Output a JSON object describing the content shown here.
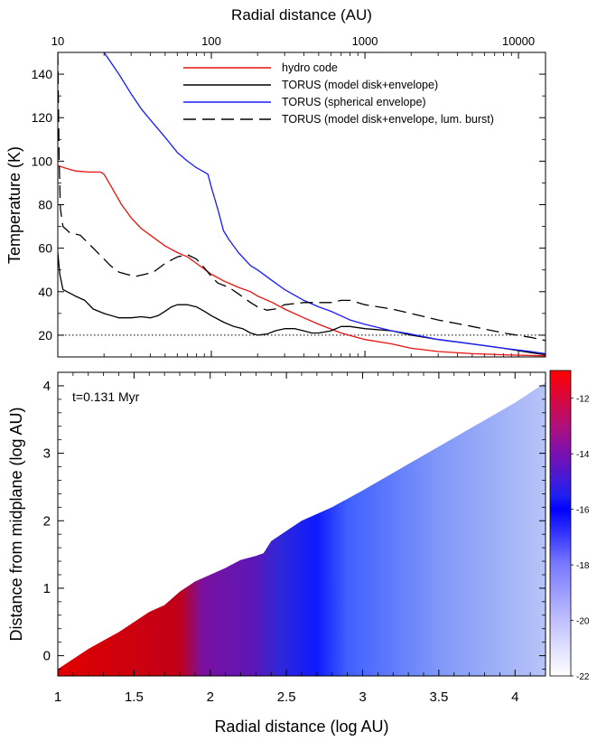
{
  "chart_data": [
    {
      "type": "line",
      "title": "",
      "xlabel": "Radial distance (AU)",
      "ylabel": "Temperature (K)",
      "xscale": "log",
      "xlim": [
        10,
        15000
      ],
      "ylim": [
        10,
        150
      ],
      "xticks": [
        10,
        100,
        1000,
        10000
      ],
      "xtick_labels": [
        "10",
        "100",
        "1000",
        "10000"
      ],
      "yticks": [
        20,
        40,
        60,
        80,
        100,
        120,
        140
      ],
      "ytick_labels": [
        "20",
        "40",
        "60",
        "80",
        "100",
        "120",
        "140"
      ],
      "legend_position": "top-right",
      "reference_line": {
        "y": 20,
        "style": "dotted"
      },
      "series": [
        {
          "name": "hydro code",
          "color": "#e8130f",
          "dash": "solid",
          "points": [
            [
              10,
              98
            ],
            [
              11,
              97
            ],
            [
              13,
              95.5
            ],
            [
              16,
              95
            ],
            [
              19,
              95
            ],
            [
              20,
              94
            ],
            [
              22,
              89
            ],
            [
              26,
              80
            ],
            [
              30,
              74
            ],
            [
              35,
              69
            ],
            [
              40,
              66
            ],
            [
              50,
              61
            ],
            [
              60,
              58
            ],
            [
              70,
              56
            ],
            [
              80,
              53
            ],
            [
              100,
              48
            ],
            [
              120,
              45
            ],
            [
              150,
              42
            ],
            [
              180,
              40
            ],
            [
              200,
              38
            ],
            [
              250,
              35
            ],
            [
              300,
              32
            ],
            [
              400,
              28
            ],
            [
              500,
              25
            ],
            [
              700,
              21
            ],
            [
              1000,
              18
            ],
            [
              1500,
              16
            ],
            [
              2000,
              14
            ],
            [
              3000,
              12.5
            ],
            [
              5000,
              11.5
            ],
            [
              8000,
              11
            ],
            [
              15000,
              10.5
            ]
          ]
        },
        {
          "name": "TORUS (model disk+envelope)",
          "color": "#000000",
          "dash": "solid",
          "points": [
            [
              10,
              58
            ],
            [
              10.3,
              48
            ],
            [
              10.8,
              41
            ],
            [
              11.5,
              40
            ],
            [
              13,
              38
            ],
            [
              15,
              36
            ],
            [
              17,
              32
            ],
            [
              20,
              30
            ],
            [
              25,
              28
            ],
            [
              30,
              28
            ],
            [
              35,
              28.5
            ],
            [
              40,
              28
            ],
            [
              45,
              29
            ],
            [
              50,
              31
            ],
            [
              55,
              33
            ],
            [
              60,
              34
            ],
            [
              70,
              34
            ],
            [
              80,
              33
            ],
            [
              90,
              31
            ],
            [
              100,
              29
            ],
            [
              120,
              26
            ],
            [
              140,
              24
            ],
            [
              160,
              23
            ],
            [
              180,
              21
            ],
            [
              200,
              20
            ],
            [
              230,
              20.5
            ],
            [
              260,
              22
            ],
            [
              300,
              23
            ],
            [
              350,
              23
            ],
            [
              400,
              22
            ],
            [
              450,
              21
            ],
            [
              500,
              21
            ],
            [
              600,
              22
            ],
            [
              700,
              24
            ],
            [
              800,
              24
            ],
            [
              1000,
              23
            ],
            [
              1500,
              22
            ],
            [
              2000,
              20
            ],
            [
              3000,
              18
            ],
            [
              5000,
              16
            ],
            [
              8000,
              14
            ],
            [
              12000,
              12
            ],
            [
              15000,
              11
            ]
          ]
        },
        {
          "name": "TORUS (spherical envelope)",
          "color": "#1a1aff",
          "dash": "solid",
          "points": [
            [
              20,
              150
            ],
            [
              25,
              140
            ],
            [
              30,
              131
            ],
            [
              35,
              124
            ],
            [
              40,
              119
            ],
            [
              50,
              111
            ],
            [
              60,
              104
            ],
            [
              70,
              100
            ],
            [
              80,
              97
            ],
            [
              90,
              95
            ],
            [
              95,
              94
            ],
            [
              100,
              88
            ],
            [
              110,
              78
            ],
            [
              120,
              68
            ],
            [
              130,
              64
            ],
            [
              150,
              58
            ],
            [
              180,
              52
            ],
            [
              200,
              50
            ],
            [
              250,
              45
            ],
            [
              300,
              41
            ],
            [
              400,
              36
            ],
            [
              500,
              33
            ],
            [
              600,
              31
            ],
            [
              800,
              27
            ],
            [
              1000,
              25
            ],
            [
              1500,
              22
            ],
            [
              2000,
              20.5
            ],
            [
              3000,
              18
            ],
            [
              5000,
              16
            ],
            [
              8000,
              14
            ],
            [
              12000,
              12.5
            ],
            [
              15000,
              11.5
            ]
          ]
        },
        {
          "name": "TORUS (model disk+envelope, lum. burst)",
          "color": "#000000",
          "dash": "dashed",
          "points": [
            [
              10,
              150
            ],
            [
              10.2,
              100
            ],
            [
              10.4,
              78
            ],
            [
              10.8,
              70
            ],
            [
              12,
              67
            ],
            [
              14,
              66
            ],
            [
              17,
              60
            ],
            [
              20,
              55
            ],
            [
              22,
              52
            ],
            [
              25,
              49
            ],
            [
              28,
              48
            ],
            [
              32,
              47
            ],
            [
              37,
              48
            ],
            [
              42,
              49
            ],
            [
              50,
              53
            ],
            [
              60,
              56
            ],
            [
              70,
              57
            ],
            [
              80,
              55
            ],
            [
              90,
              51
            ],
            [
              100,
              47
            ],
            [
              110,
              44
            ],
            [
              130,
              42
            ],
            [
              150,
              39
            ],
            [
              180,
              35
            ],
            [
              200,
              33
            ],
            [
              230,
              31.5
            ],
            [
              260,
              32
            ],
            [
              300,
              34
            ],
            [
              400,
              35
            ],
            [
              500,
              35
            ],
            [
              600,
              35
            ],
            [
              700,
              36
            ],
            [
              800,
              36
            ],
            [
              1000,
              34
            ],
            [
              1500,
              32
            ],
            [
              2000,
              30
            ],
            [
              3000,
              27
            ],
            [
              5000,
              24
            ],
            [
              8000,
              21
            ],
            [
              12000,
              19
            ],
            [
              15000,
              17.5
            ]
          ]
        }
      ]
    },
    {
      "type": "heatmap",
      "title": "",
      "annotation": "t=0.131 Myr",
      "xlabel": "Radial distance (log AU)",
      "ylabel": "Distance from midplane (log AU)",
      "xlim": [
        1,
        4.2
      ],
      "ylim": [
        -0.3,
        4.2
      ],
      "xticks": [
        1,
        1.5,
        2,
        2.5,
        3,
        3.5,
        4
      ],
      "xtick_labels": [
        "1",
        "1.5",
        "2",
        "2.5",
        "3",
        "3.5",
        "4"
      ],
      "yticks": [
        0,
        1,
        2,
        3,
        4
      ],
      "ytick_labels": [
        "0",
        "1",
        "2",
        "3",
        "4"
      ],
      "region_upper_boundary": [
        [
          1,
          -0.2
        ],
        [
          1.2,
          0.1
        ],
        [
          1.4,
          0.35
        ],
        [
          1.6,
          0.65
        ],
        [
          1.7,
          0.75
        ],
        [
          1.8,
          0.95
        ],
        [
          1.9,
          1.1
        ],
        [
          2.0,
          1.2
        ],
        [
          2.1,
          1.3
        ],
        [
          2.2,
          1.42
        ],
        [
          2.3,
          1.48
        ],
        [
          2.35,
          1.52
        ],
        [
          2.4,
          1.7
        ],
        [
          2.5,
          1.85
        ],
        [
          2.6,
          2.0
        ],
        [
          2.7,
          2.1
        ],
        [
          2.8,
          2.2
        ],
        [
          3.0,
          2.45
        ],
        [
          3.5,
          3.1
        ],
        [
          4.0,
          3.75
        ],
        [
          4.2,
          4.05
        ]
      ],
      "colorscale": [
        [
          1,
          "#e00000"
        ],
        [
          1.8,
          "#c00018"
        ],
        [
          1.95,
          "#7a10a0"
        ],
        [
          2.3,
          "#5a18b8"
        ],
        [
          2.45,
          "#3028d8"
        ],
        [
          2.7,
          "#0f1aff"
        ],
        [
          2.9,
          "#4060ff"
        ],
        [
          3.5,
          "#8098f8"
        ],
        [
          4.2,
          "#b8c4f8"
        ]
      ],
      "colorbar": {
        "range": [
          -22,
          -11
        ],
        "ticks": [
          -12,
          -14,
          -16,
          -18,
          -20,
          -22
        ],
        "tick_labels": [
          "-12",
          "-14",
          "-16",
          "-18",
          "-20",
          "-22"
        ],
        "colors": [
          [
            -11,
            "#ff0000"
          ],
          [
            -13,
            "#b0107a"
          ],
          [
            -14,
            "#7a10b0"
          ],
          [
            -15.5,
            "#2020f0"
          ],
          [
            -16,
            "#0000ff"
          ],
          [
            -18,
            "#7a7aff"
          ],
          [
            -20,
            "#c0c0ff"
          ],
          [
            -22,
            "#ffffff"
          ]
        ]
      }
    }
  ]
}
